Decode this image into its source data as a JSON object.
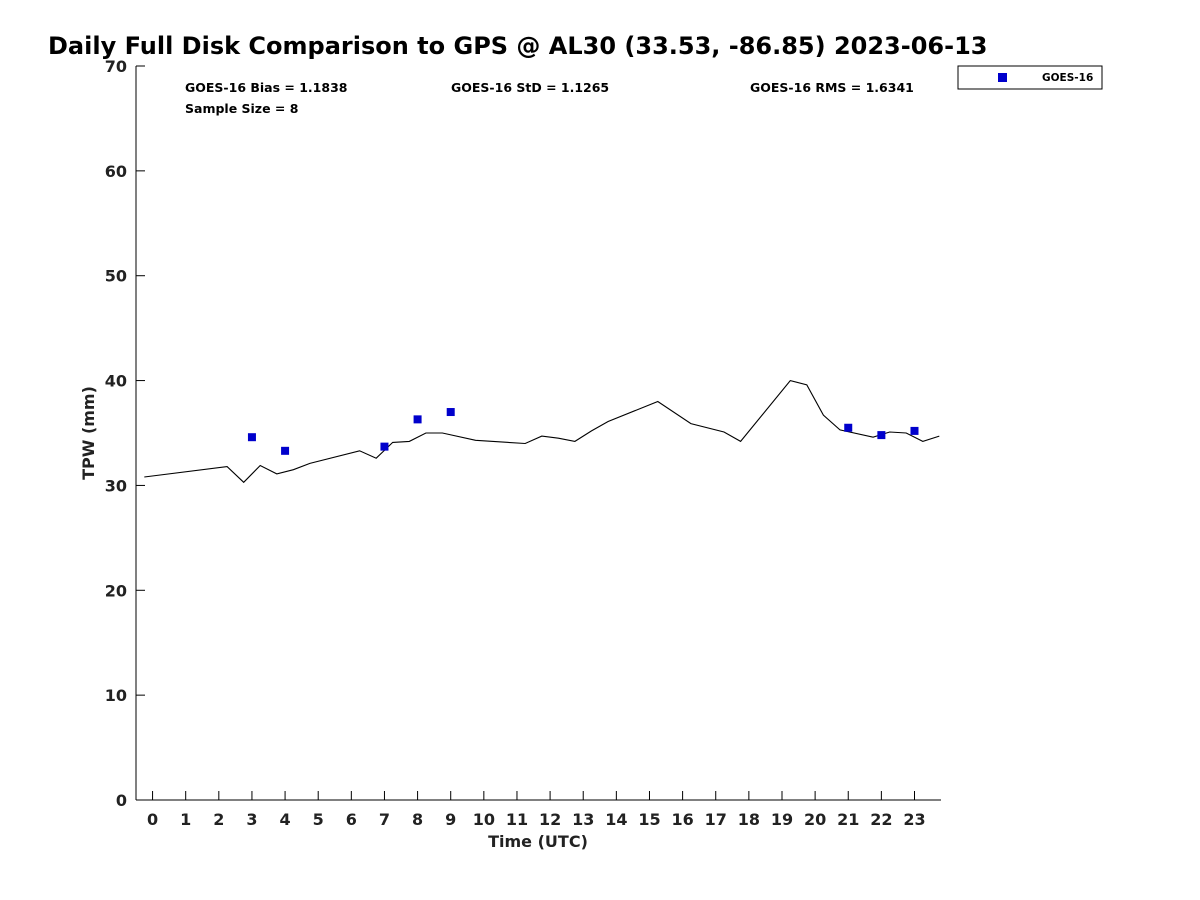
{
  "chart_data": {
    "type": "line",
    "title": "Daily Full Disk Comparison to GPS @ AL30 (33.53, -86.85) 2023-06-13",
    "xlabel": "Time (UTC)",
    "ylabel": "TPW (mm)",
    "xlim": [
      -0.5,
      23.8
    ],
    "ylim": [
      0,
      70
    ],
    "x_ticks": [
      0,
      1,
      2,
      3,
      4,
      5,
      6,
      7,
      8,
      9,
      10,
      11,
      12,
      13,
      14,
      15,
      16,
      17,
      18,
      19,
      20,
      21,
      22,
      23
    ],
    "y_ticks": [
      0,
      10,
      20,
      30,
      40,
      50,
      60,
      70
    ],
    "grid": false,
    "legend_position": "top-right, outside plot",
    "stats": {
      "bias": "GOES-16 Bias = 1.1838",
      "std": "GOES-16 StD = 1.1265",
      "rms": "GOES-16 RMS = 1.6341",
      "sample": "Sample Size = 8"
    },
    "series": [
      {
        "type": "line",
        "color": "#000000",
        "x": [
          -0.25,
          2.25,
          2.75,
          3.25,
          3.75,
          4.25,
          4.75,
          6.25,
          6.75,
          7.25,
          7.75,
          8.25,
          8.75,
          9.75,
          11.25,
          11.75,
          12.25,
          12.75,
          13.25,
          13.75,
          15.25,
          16.25,
          17.25,
          17.75,
          19.25,
          19.75,
          20.25,
          20.75,
          21.75,
          22.25,
          22.75,
          23.25,
          23.75
        ],
        "y": [
          30.8,
          31.8,
          30.3,
          31.9,
          31.1,
          31.5,
          32.1,
          33.3,
          32.6,
          34.1,
          34.2,
          35.0,
          35.0,
          34.3,
          34.0,
          34.7,
          34.5,
          34.2,
          35.2,
          36.1,
          38.0,
          35.9,
          35.1,
          34.2,
          40.0,
          39.6,
          36.7,
          35.3,
          34.6,
          35.1,
          35.0,
          34.2,
          34.7
        ]
      },
      {
        "name": "GOES-16",
        "type": "scatter",
        "marker": "square",
        "color": "#0000CC",
        "x": [
          3.0,
          4.0,
          7.0,
          8.0,
          9.0,
          21.0,
          22.0,
          23.0
        ],
        "y": [
          34.6,
          33.3,
          33.7,
          36.3,
          37.0,
          35.5,
          34.8,
          35.2
        ]
      }
    ]
  }
}
